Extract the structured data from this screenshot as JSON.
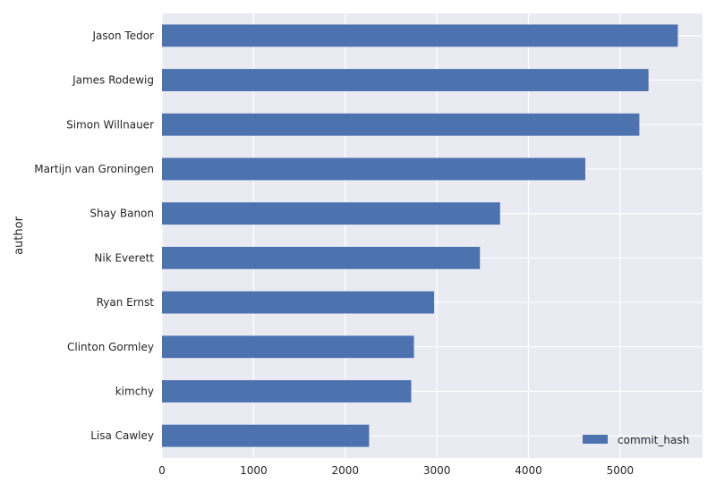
{
  "chart_data": {
    "type": "bar",
    "orientation": "horizontal",
    "categories": [
      "Jason Tedor",
      "James Rodewig",
      "Simon Willnauer",
      "Martijn van Groningen",
      "Shay Banon",
      "Nik Everett",
      "Ryan Ernst",
      "Clinton Gormley",
      "kimchy",
      "Lisa Cawley"
    ],
    "series": [
      {
        "name": "commit_hash",
        "values": [
          5630,
          5310,
          5210,
          4620,
          3690,
          3470,
          2970,
          2750,
          2720,
          2260
        ]
      }
    ],
    "xlim": [
      0,
      5900
    ],
    "xticks": [
      0,
      1000,
      2000,
      3000,
      4000,
      5000
    ],
    "ylabel": "author",
    "xlabel": "",
    "grid": true,
    "legend_position": "bottom-right",
    "colors": {
      "bar": "#4c72b0",
      "plot_background": "#eaeaf2",
      "grid": "#ffffff"
    }
  }
}
